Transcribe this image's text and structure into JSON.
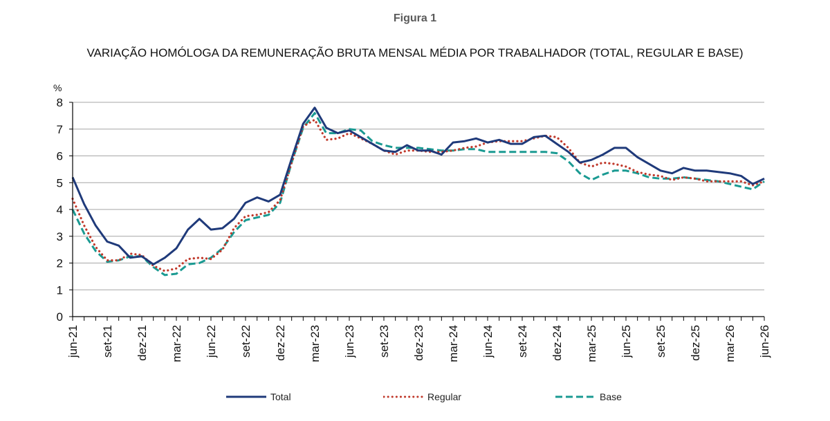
{
  "figure": {
    "label": "Figura 1",
    "title": "VARIAÇÃO HOMÓLOGA DA REMUNERAÇÃO BRUTA MENSAL MÉDIA POR TRABALHADOR (TOTAL, REGULAR E BASE)"
  },
  "colors": {
    "total": "#1f3a7a",
    "regular": "#c0392b",
    "base": "#1a9a92",
    "grid": "#a6a6a6",
    "axis": "#000000"
  },
  "chart_data": {
    "type": "line",
    "title": "VARIAÇÃO HOMÓLOGA DA REMUNERAÇÃO BRUTA MENSAL MÉDIA POR TRABALHADOR (TOTAL, REGULAR E BASE)",
    "ylabel": "%",
    "ylim": [
      0,
      8
    ],
    "yticks": [
      "0",
      "1",
      "2",
      "3",
      "4",
      "5",
      "6",
      "7",
      "8"
    ],
    "grid": true,
    "legend_position": "bottom",
    "x": [
      "jun-21",
      "jul-21",
      "ago-21",
      "set-21",
      "out-21",
      "nov-21",
      "dez-21",
      "jan-22",
      "fev-22",
      "mar-22",
      "abr-22",
      "mai-22",
      "jun-22",
      "jul-22",
      "ago-22",
      "set-22",
      "out-22",
      "nov-22",
      "dez-22",
      "jan-23",
      "fev-23",
      "mar-23",
      "abr-23",
      "mai-23",
      "jun-23",
      "jul-23",
      "ago-23",
      "set-23",
      "out-23",
      "nov-23",
      "dez-23",
      "jan-24",
      "fev-24",
      "mar-24",
      "abr-24",
      "mai-24",
      "jun-24",
      "jul-24",
      "ago-24",
      "set-24",
      "out-24",
      "nov-24",
      "dez-24",
      "jan-25",
      "fev-25",
      "mar-25",
      "abr-25",
      "mai-25",
      "jun-25",
      "jul-25",
      "ago-25",
      "set-25",
      "out-25",
      "nov-25",
      "dez-25",
      "jan-26",
      "fev-26",
      "mar-26",
      "abr-26",
      "mai-26",
      "jun-26"
    ],
    "xtick_labels": [
      "jun-21",
      "set-21",
      "dez-21",
      "mar-22",
      "jun-22",
      "set-22",
      "dez-22",
      "mar-23",
      "jun-23",
      "set-23",
      "dez-23",
      "mar-24",
      "jun-24",
      "set-24",
      "dez-24",
      "mar-25",
      "jun-25",
      "set-25",
      "dez-25",
      "mar-26",
      "jun-26"
    ],
    "series": [
      {
        "name": "Total",
        "style": "solid",
        "values": [
          5.2,
          4.2,
          3.4,
          2.8,
          2.65,
          2.2,
          2.25,
          1.95,
          2.2,
          2.55,
          3.25,
          3.65,
          3.25,
          3.3,
          3.65,
          4.25,
          4.45,
          4.3,
          4.55,
          5.9,
          7.2,
          7.8,
          7.05,
          6.85,
          6.95,
          6.7,
          6.45,
          6.2,
          6.15,
          6.4,
          6.2,
          6.2,
          6.05,
          6.5,
          6.55,
          6.65,
          6.5,
          6.6,
          6.45,
          6.45,
          6.7,
          6.75,
          6.45,
          6.15,
          5.75,
          5.85,
          6.05,
          6.3,
          6.3,
          5.95,
          5.7,
          5.45,
          5.35,
          5.55,
          5.45,
          5.45,
          5.4,
          5.35,
          5.25,
          4.95,
          5.15
        ]
      },
      {
        "name": "Regular",
        "style": "dotted",
        "values": [
          4.4,
          3.4,
          2.6,
          2.1,
          2.1,
          2.35,
          2.3,
          1.9,
          1.7,
          1.8,
          2.15,
          2.2,
          2.15,
          2.5,
          3.3,
          3.75,
          3.8,
          3.9,
          4.35,
          5.75,
          7.1,
          7.35,
          6.6,
          6.65,
          6.85,
          6.65,
          6.45,
          6.2,
          6.05,
          6.2,
          6.2,
          6.15,
          6.15,
          6.2,
          6.3,
          6.35,
          6.5,
          6.55,
          6.55,
          6.55,
          6.65,
          6.75,
          6.7,
          6.3,
          5.75,
          5.6,
          5.75,
          5.7,
          5.6,
          5.4,
          5.3,
          5.25,
          5.1,
          5.2,
          5.15,
          5.05,
          5.05,
          5.05,
          5.05,
          4.9,
          5.05
        ]
      },
      {
        "name": "Base",
        "style": "dashed",
        "values": [
          4.0,
          3.1,
          2.45,
          2.05,
          2.1,
          2.25,
          2.25,
          1.85,
          1.55,
          1.6,
          1.95,
          2.0,
          2.2,
          2.55,
          3.15,
          3.6,
          3.7,
          3.8,
          4.25,
          5.75,
          7.05,
          7.6,
          6.85,
          6.85,
          7.0,
          6.95,
          6.55,
          6.4,
          6.3,
          6.3,
          6.3,
          6.25,
          6.2,
          6.2,
          6.25,
          6.25,
          6.15,
          6.15,
          6.15,
          6.15,
          6.15,
          6.15,
          6.1,
          5.8,
          5.35,
          5.1,
          5.3,
          5.45,
          5.45,
          5.35,
          5.2,
          5.15,
          5.15,
          5.2,
          5.15,
          5.1,
          5.05,
          4.95,
          4.85,
          4.75,
          5.05
        ]
      }
    ]
  }
}
